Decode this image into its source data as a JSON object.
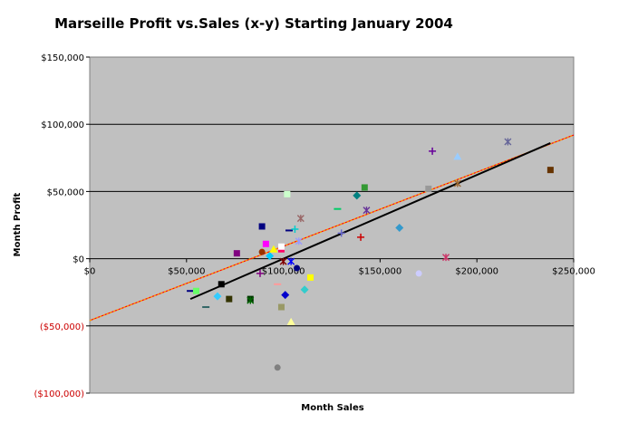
{
  "chart_data": {
    "type": "scatter",
    "title": "Marseille Profit vs.Sales (x-y) Starting January 2004",
    "xlabel": "Month Sales",
    "ylabel": "Month Profit",
    "xlim": [
      0,
      250000
    ],
    "ylim": [
      -100000,
      150000
    ],
    "x_ticks": [
      0,
      50000,
      100000,
      150000,
      200000,
      250000
    ],
    "y_ticks": [
      -100000,
      -50000,
      0,
      50000,
      100000,
      150000
    ],
    "x_tick_labels": [
      "$0",
      "$50,000",
      "$100,000",
      "$150,000",
      "$200,000",
      "$250,000"
    ],
    "y_tick_labels": [
      "($100,000)",
      "($50,000)",
      "$0",
      "$50,000",
      "$100,000",
      "$150,000"
    ],
    "grid": "horizontal",
    "plot_background": "#c0c0c0",
    "points": [
      {
        "x": 52000,
        "y": -24000,
        "color": "#000080",
        "marker": "dash"
      },
      {
        "x": 55000,
        "y": -24000,
        "color": "#66ff66",
        "marker": "square"
      },
      {
        "x": 60000,
        "y": -36000,
        "color": "#336666",
        "marker": "dash"
      },
      {
        "x": 66000,
        "y": -28000,
        "color": "#33ccff",
        "marker": "diamond"
      },
      {
        "x": 68000,
        "y": -19000,
        "color": "#000000",
        "marker": "square"
      },
      {
        "x": 72000,
        "y": -30000,
        "color": "#333300",
        "marker": "square"
      },
      {
        "x": 76000,
        "y": 4000,
        "color": "#800080",
        "marker": "square"
      },
      {
        "x": 83000,
        "y": -30000,
        "color": "#003300",
        "marker": "square"
      },
      {
        "x": 83000,
        "y": -31000,
        "color": "#006600",
        "marker": "x"
      },
      {
        "x": 88000,
        "y": -11000,
        "color": "#800080",
        "marker": "plus"
      },
      {
        "x": 89000,
        "y": 5000,
        "color": "#993300",
        "marker": "circle"
      },
      {
        "x": 89000,
        "y": 24000,
        "color": "#000080",
        "marker": "square"
      },
      {
        "x": 91000,
        "y": 11000,
        "color": "#ff00ff",
        "marker": "square"
      },
      {
        "x": 93000,
        "y": 2000,
        "color": "#00ccff",
        "marker": "diamond"
      },
      {
        "x": 95000,
        "y": 7000,
        "color": "#ffff00",
        "marker": "triangle"
      },
      {
        "x": 97000,
        "y": -19000,
        "color": "#ff9999",
        "marker": "dash"
      },
      {
        "x": 97000,
        "y": -81000,
        "color": "#808080",
        "marker": "circle"
      },
      {
        "x": 99000,
        "y": 7000,
        "color": "#ff0066",
        "marker": "square"
      },
      {
        "x": 99000,
        "y": 9000,
        "color": "#ffffff",
        "marker": "square"
      },
      {
        "x": 99000,
        "y": -36000,
        "color": "#999966",
        "marker": "square"
      },
      {
        "x": 100000,
        "y": -2000,
        "color": "#800000",
        "marker": "x"
      },
      {
        "x": 101000,
        "y": -27000,
        "color": "#0000cc",
        "marker": "diamond"
      },
      {
        "x": 102000,
        "y": 48000,
        "color": "#ccffcc",
        "marker": "square"
      },
      {
        "x": 103000,
        "y": 21000,
        "color": "#000080",
        "marker": "dash"
      },
      {
        "x": 104000,
        "y": -2000,
        "color": "#0000ff",
        "marker": "x"
      },
      {
        "x": 104000,
        "y": -47000,
        "color": "#ffff99",
        "marker": "triangle"
      },
      {
        "x": 106000,
        "y": 22000,
        "color": "#00cccc",
        "marker": "plus"
      },
      {
        "x": 107000,
        "y": -7000,
        "color": "#000080",
        "marker": "circle"
      },
      {
        "x": 108000,
        "y": 13000,
        "color": "#9999ff",
        "marker": "x"
      },
      {
        "x": 109000,
        "y": 30000,
        "color": "#996666",
        "marker": "x"
      },
      {
        "x": 111000,
        "y": -23000,
        "color": "#33cccc",
        "marker": "diamond"
      },
      {
        "x": 114000,
        "y": -14000,
        "color": "#ffff00",
        "marker": "square"
      },
      {
        "x": 128000,
        "y": 37000,
        "color": "#00cc66",
        "marker": "dash"
      },
      {
        "x": 130000,
        "y": 19000,
        "color": "#6666cc",
        "marker": "plus"
      },
      {
        "x": 138000,
        "y": 47000,
        "color": "#008080",
        "marker": "diamond"
      },
      {
        "x": 140000,
        "y": 16000,
        "color": "#cc0000",
        "marker": "plus"
      },
      {
        "x": 142000,
        "y": 53000,
        "color": "#339933",
        "marker": "square"
      },
      {
        "x": 143000,
        "y": 36000,
        "color": "#663399",
        "marker": "x"
      },
      {
        "x": 160000,
        "y": 23000,
        "color": "#3399cc",
        "marker": "diamond"
      },
      {
        "x": 170000,
        "y": -11000,
        "color": "#ccccff",
        "marker": "circle"
      },
      {
        "x": 175000,
        "y": 52000,
        "color": "#999999",
        "marker": "square"
      },
      {
        "x": 177000,
        "y": 80000,
        "color": "#660099",
        "marker": "plus"
      },
      {
        "x": 184000,
        "y": 1000,
        "color": "#cc3366",
        "marker": "x"
      },
      {
        "x": 190000,
        "y": 56000,
        "color": "#996633",
        "marker": "x"
      },
      {
        "x": 190000,
        "y": 76000,
        "color": "#99ccff",
        "marker": "triangle"
      },
      {
        "x": 216000,
        "y": 87000,
        "color": "#666699",
        "marker": "x"
      },
      {
        "x": 238000,
        "y": 66000,
        "color": "#663300",
        "marker": "square"
      }
    ],
    "trendlines": [
      {
        "x": [
          0,
          250000
        ],
        "y": [
          -46000,
          92000
        ],
        "color": "#ff9900",
        "style": "dotted-red-orange"
      },
      {
        "x": [
          52000,
          238000
        ],
        "y": [
          -30000,
          86000
        ],
        "color": "#000000",
        "style": "solid"
      }
    ]
  }
}
